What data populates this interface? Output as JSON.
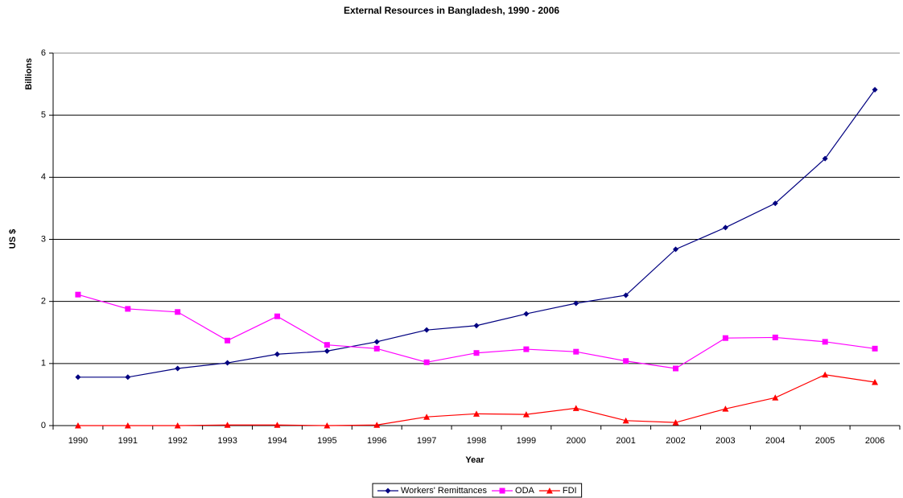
{
  "chart_data": {
    "type": "line",
    "title": "External Resources in Bangladesh, 1990 - 2006",
    "x_label": "Year",
    "y_label": "US $",
    "y_unit_label": "Billions",
    "categories": [
      "1990",
      "1991",
      "1992",
      "1993",
      "1994",
      "1995",
      "1996",
      "1997",
      "1998",
      "1999",
      "2000",
      "2001",
      "2002",
      "2003",
      "2004",
      "2005",
      "2006"
    ],
    "series": [
      {
        "name": "Workers' Remittances",
        "color": "#000080",
        "marker": "diamond",
        "values": [
          0.78,
          0.78,
          0.92,
          1.01,
          1.15,
          1.2,
          1.35,
          1.54,
          1.61,
          1.8,
          1.97,
          2.1,
          2.84,
          3.19,
          3.58,
          4.3,
          5.41
        ]
      },
      {
        "name": "ODA",
        "color": "#ff00ff",
        "marker": "square",
        "values": [
          2.11,
          1.88,
          1.83,
          1.37,
          1.76,
          1.3,
          1.24,
          1.02,
          1.17,
          1.23,
          1.19,
          1.04,
          0.92,
          1.41,
          1.42,
          1.35,
          1.24
        ]
      },
      {
        "name": "FDI",
        "color": "#ff0000",
        "marker": "triangle",
        "values": [
          0,
          0,
          0,
          0.01,
          0.01,
          0,
          0.01,
          0.14,
          0.19,
          0.18,
          0.28,
          0.08,
          0.05,
          0.27,
          0.45,
          0.82,
          0.7
        ]
      }
    ],
    "ylim": [
      0,
      6
    ],
    "yticks": [
      0,
      1,
      2,
      3,
      4,
      5,
      6
    ],
    "grid": true,
    "legend": "bottom"
  }
}
